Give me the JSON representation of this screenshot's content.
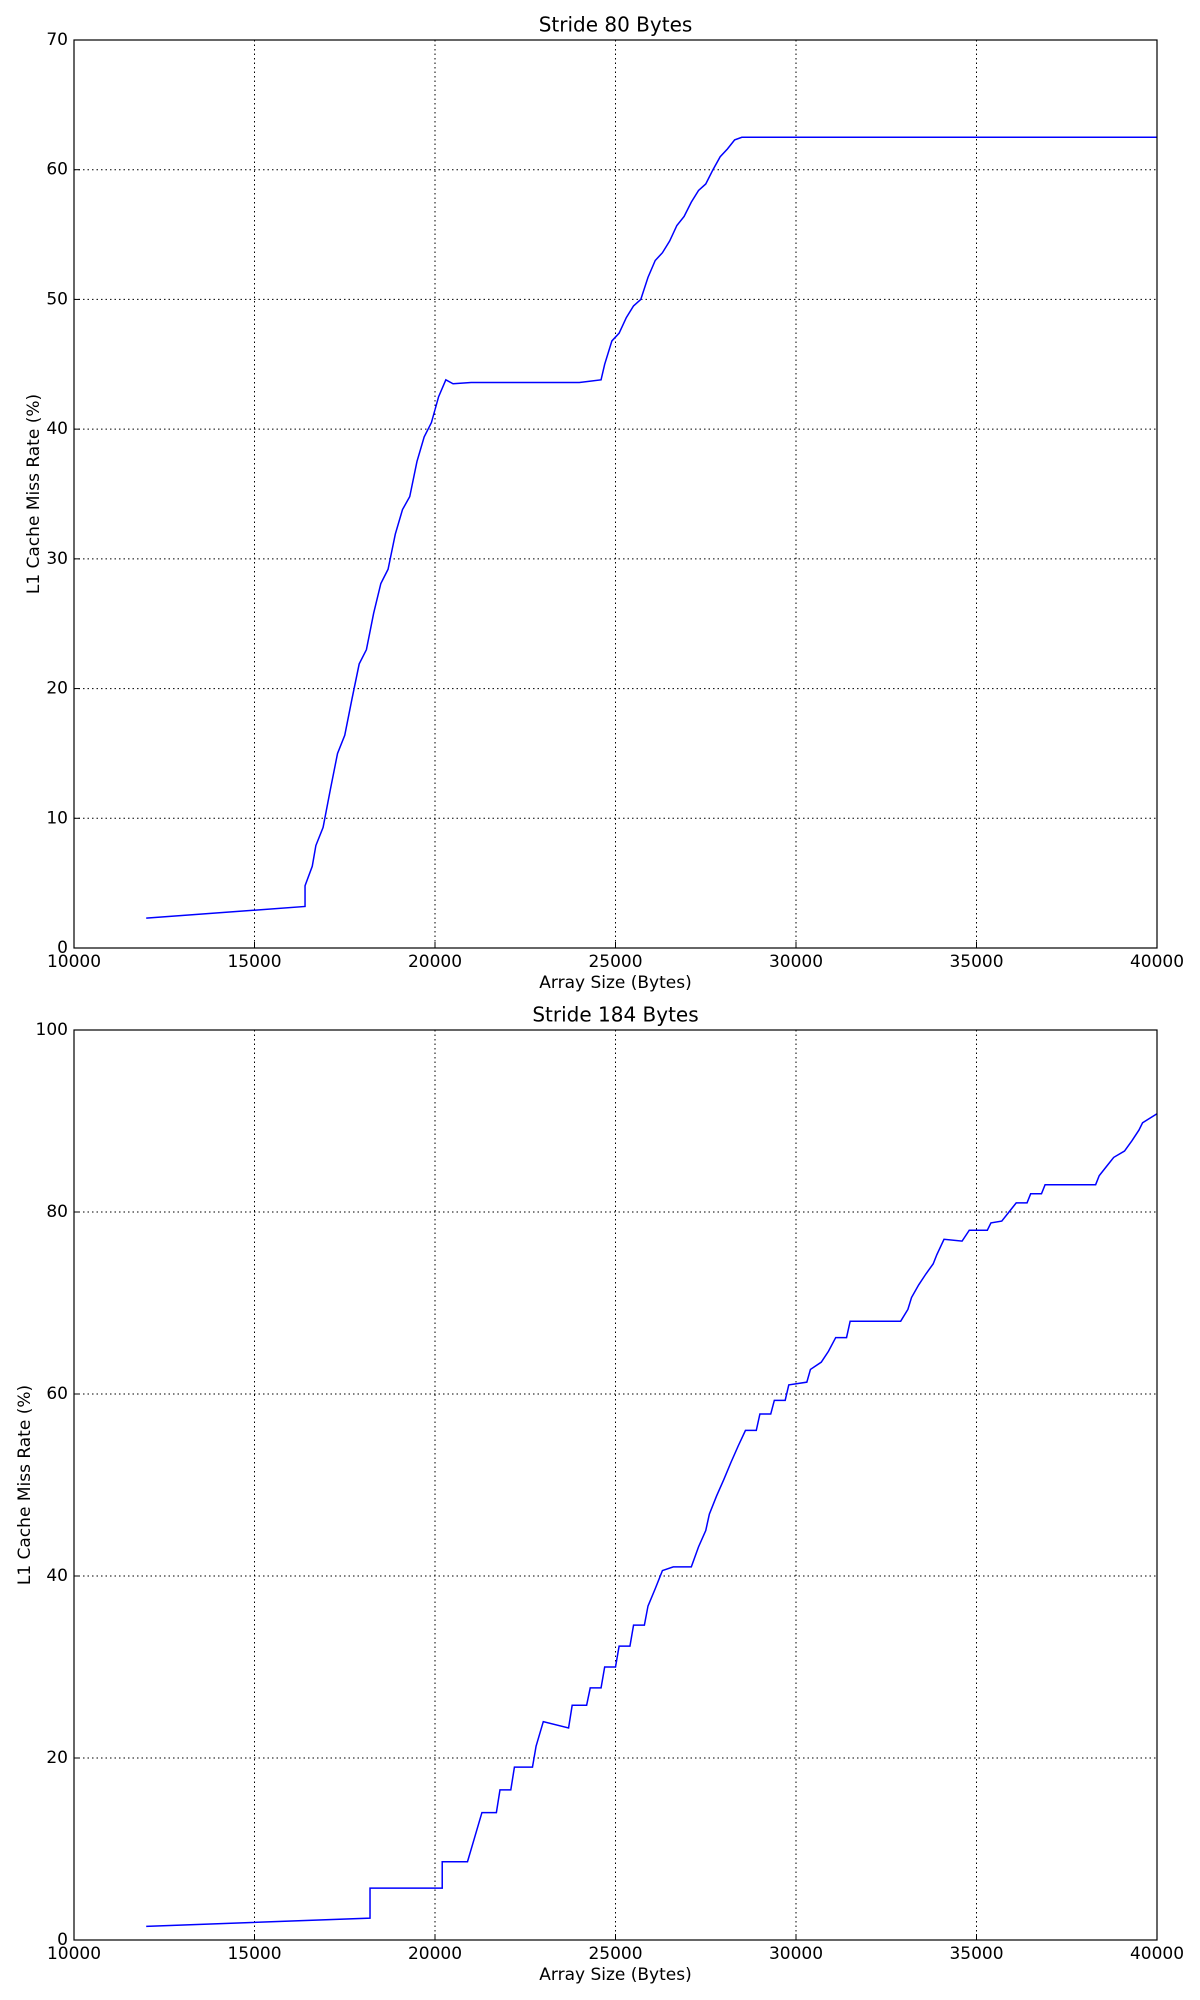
{
  "chart_data": [
    {
      "type": "line",
      "title": "Stride 80 Bytes",
      "xlabel": "Array Size (Bytes)",
      "ylabel": "L1 Cache Miss Rate (%)",
      "xlim": [
        10000,
        40000
      ],
      "xticks": [
        10000,
        15000,
        20000,
        25000,
        30000,
        35000,
        40000
      ],
      "ylim": [
        0,
        70
      ],
      "yticks": [
        0,
        10,
        20,
        30,
        40,
        50,
        60,
        70
      ],
      "grid": true,
      "series": [
        {
          "name": "Stride 80",
          "color": "#0000ff",
          "x": [
            12000,
            16400,
            16400,
            16600,
            16700,
            16900,
            17100,
            17300,
            17500,
            17700,
            17900,
            18100,
            18300,
            18500,
            18700,
            18900,
            19100,
            19300,
            19500,
            19700,
            19900,
            20100,
            20300,
            20500,
            21000,
            22000,
            23000,
            24000,
            24600,
            24700,
            24900,
            25100,
            25300,
            25500,
            25700,
            25900,
            26100,
            26300,
            26500,
            26700,
            26900,
            27100,
            27300,
            27500,
            27700,
            27900,
            28100,
            28300,
            28500,
            30000,
            35000,
            40000
          ],
          "values": [
            2.3,
            3.2,
            4.8,
            6.3,
            7.9,
            9.3,
            12.2,
            15,
            16.4,
            19.2,
            21.9,
            23,
            25.8,
            28.1,
            29.2,
            31.9,
            33.8,
            34.8,
            37.5,
            39.4,
            40.5,
            42.5,
            43.8,
            43.5,
            43.6,
            43.6,
            43.6,
            43.6,
            43.8,
            45,
            46.8,
            47.4,
            48.6,
            49.5,
            50,
            51.7,
            53,
            53.6,
            54.5,
            55.7,
            56.4,
            57.5,
            58.4,
            58.9,
            60,
            61,
            61.6,
            62.3,
            62.5,
            62.5,
            62.5,
            62.5
          ]
        }
      ]
    },
    {
      "type": "line",
      "title": "Stride 184 Bytes",
      "xlabel": "Array Size (Bytes)",
      "ylabel": "L1 Cache Miss Rate (%)",
      "xlim": [
        10000,
        40000
      ],
      "xticks": [
        10000,
        15000,
        20000,
        25000,
        30000,
        35000,
        40000
      ],
      "ylim": [
        0,
        100
      ],
      "yticks": [
        0,
        20,
        40,
        60,
        80,
        100
      ],
      "grid": true,
      "series": [
        {
          "name": "Stride 184",
          "color": "#0000ff",
          "x": [
            12000,
            18200,
            18200,
            20200,
            20200,
            20900,
            21100,
            21300,
            21700,
            21800,
            22100,
            22200,
            22700,
            22800,
            23000,
            23700,
            23800,
            24200,
            24300,
            24600,
            24700,
            25000,
            25100,
            25400,
            25500,
            25800,
            25900,
            26100,
            26300,
            26600,
            27100,
            27300,
            27500,
            27600,
            27800,
            28000,
            28200,
            28400,
            28600,
            28900,
            29000,
            29300,
            29400,
            29700,
            29800,
            30300,
            30400,
            30700,
            30900,
            31100,
            31400,
            31500,
            32900,
            33100,
            33200,
            33400,
            33600,
            33800,
            33900,
            34100,
            34600,
            34800,
            35300,
            35400,
            35700,
            35900,
            36100,
            36400,
            36500,
            36800,
            36900,
            37500,
            38300,
            38400,
            38600,
            38800,
            39100,
            39300,
            39500,
            39600,
            40000
          ],
          "values": [
            1.5,
            2.4,
            5.7,
            5.7,
            8.6,
            8.6,
            11.3,
            14,
            14,
            16.5,
            16.5,
            19,
            19,
            21.3,
            24,
            23.3,
            25.8,
            25.8,
            27.7,
            27.7,
            30,
            30,
            32.3,
            32.3,
            34.6,
            34.6,
            36.7,
            38.6,
            40.6,
            41,
            41,
            43.2,
            45,
            46.8,
            48.8,
            50.6,
            52.5,
            54.3,
            56,
            56,
            57.8,
            57.8,
            59.3,
            59.3,
            61,
            61.3,
            62.7,
            63.5,
            64.7,
            66.2,
            66.2,
            68,
            68,
            69.3,
            70.6,
            72,
            73.2,
            74.3,
            75.3,
            77,
            76.8,
            78,
            78,
            78.8,
            79,
            80,
            81,
            81,
            82,
            82,
            83,
            83,
            83,
            84,
            85,
            86,
            86.7,
            87.8,
            89,
            89.8,
            90.8
          ]
        }
      ]
    }
  ]
}
